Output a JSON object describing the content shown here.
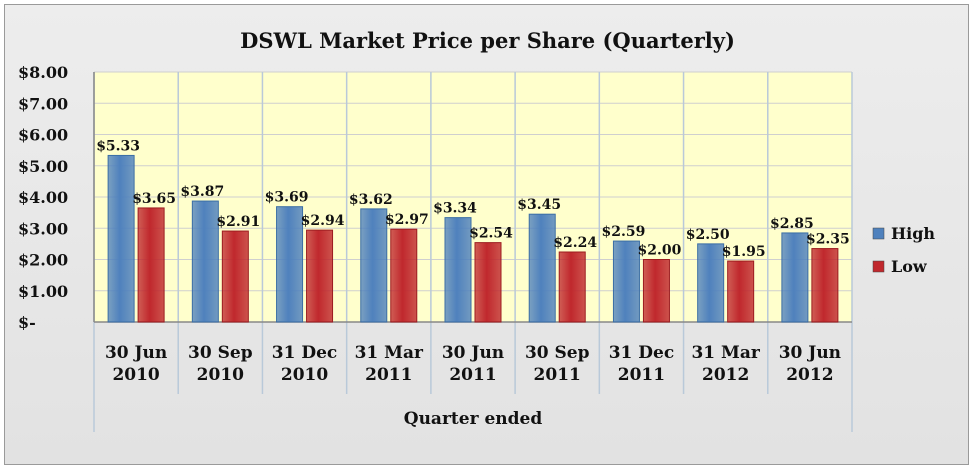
{
  "chart_data": {
    "type": "bar",
    "title": "DSWL Market Price per Share (Quarterly)",
    "xlabel": "Quarter ended",
    "ylabel": "",
    "ylim": [
      0,
      8
    ],
    "y_ticks": [
      "$-",
      "$1.00",
      "$2.00",
      "$3.00",
      "$4.00",
      "$5.00",
      "$6.00",
      "$7.00",
      "$8.00"
    ],
    "categories": [
      [
        "30 Jun",
        "2010"
      ],
      [
        "30 Sep",
        "2010"
      ],
      [
        "31 Dec",
        "2010"
      ],
      [
        "31 Mar",
        "2011"
      ],
      [
        "30 Jun",
        "2011"
      ],
      [
        "30 Sep",
        "2011"
      ],
      [
        "31 Dec",
        "2011"
      ],
      [
        "31 Mar",
        "2012"
      ],
      [
        "30 Jun",
        "2012"
      ]
    ],
    "series": [
      {
        "name": "High",
        "color": "#4f81bd",
        "values": [
          5.33,
          3.87,
          3.69,
          3.62,
          3.34,
          3.45,
          2.59,
          2.5,
          2.85
        ],
        "labels": [
          "$5.33",
          "$3.87",
          "$3.69",
          "$3.62",
          "$3.34",
          "$3.45",
          "$2.59",
          "$2.50",
          "$2.85"
        ]
      },
      {
        "name": "Low",
        "color": "#c0282d",
        "values": [
          3.65,
          2.91,
          2.94,
          2.97,
          2.54,
          2.24,
          2.0,
          1.95,
          2.35
        ],
        "labels": [
          "$3.65",
          "$2.91",
          "$2.94",
          "$2.97",
          "$2.54",
          "$2.24",
          "$2.00",
          "$1.95",
          "$2.35"
        ]
      }
    ],
    "grid": true,
    "plot_background": "#ffffcc",
    "legend_position": "right"
  }
}
